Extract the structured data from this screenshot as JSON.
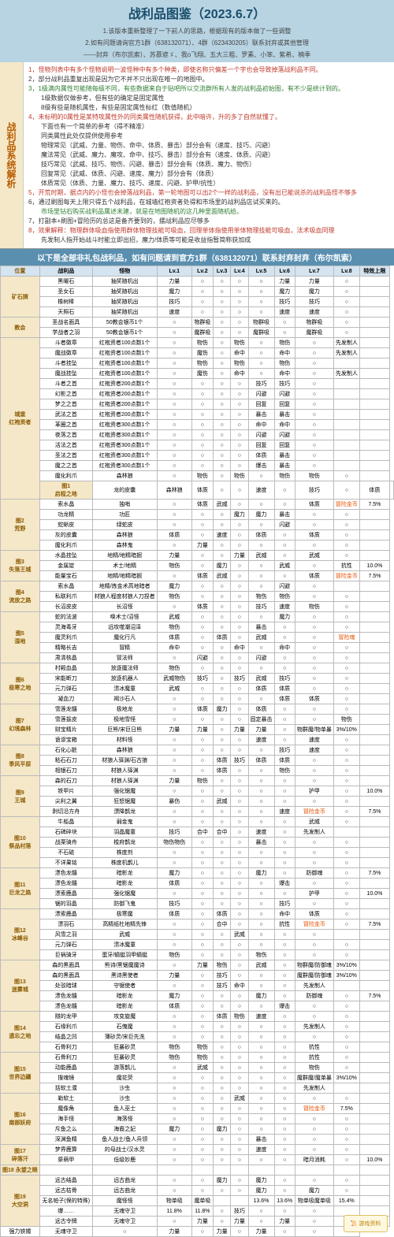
{
  "title": "战利品图鉴（2023.6.7）",
  "subtitle1": "1.该版本重新整理了一下前人的思路，根据现有的版本做了一些调整",
  "subtitle2": "2.如有问题请询官方1群（638132071）、4群（623430205）联系封弃或其他管理",
  "credits": "——封弃（布尔凯索）、苏慕遮ゞ、我o飞翔、五大三粗、罗素、小笨、紫希、楠季",
  "rules_label": "战利品系统解析",
  "rules": [
    {
      "t": "1，怪物列表中有多个怪物说明一波怪种中有多个种类，即使名称只偏差一个字也会导致掉落战利品不同。",
      "cls": "hl1"
    },
    {
      "t": "2，部分战利品重复出现是因为它不并不只出现在唯一的地图中。",
      "cls": ""
    },
    {
      "t": "3，1级满内属性可能随每级不同，有些数据来自于贴吧所以交流群所有人发的战利品初始图，有不少是统计到的。",
      "cls": "hl2"
    },
    {
      "t": "　　1级数据仅做参考，但有些的确定是固定属性",
      "cls": ""
    },
    {
      "t": "　　8级有些是随机属性，有些是固定属性标红（数值随机）",
      "cls": ""
    },
    {
      "t": "4，未标明的0属性是某特攻属性外的同类属性随机获得，此中暗许，升的多了自然就懂了。",
      "cls": "hl1"
    },
    {
      "t": "　　下面也有一个简单的参考（得不精准）",
      "cls": ""
    },
    {
      "t": "　　同类属性此处仅提供使用参考",
      "cls": ""
    },
    {
      "t": "　　物理常见（武威、力量、物伤、命中、体质、暴击）部分会有（速度、技巧、闪避）",
      "cls": ""
    },
    {
      "t": "　　魔法常见（武威、魔力、魔攻、命中、技巧、暴击）部分会有（速度、体质、闪避）",
      "cls": ""
    },
    {
      "t": "　　技巧常见（武威、技巧、物伤、闪避、暴击）部分会有（体质、魔力、物伤）",
      "cls": ""
    },
    {
      "t": "　　回复常见（武威、体质、闪避、速度、魔力）部分会有（体质）",
      "cls": ""
    },
    {
      "t": "　　体质常见（体质、力量、魔力、技巧、速度、闪避、护甲/抗性）",
      "cls": ""
    },
    {
      "t": "5，开荒时期，据点内的小怪也会掉落战利品，第一轮地图可以出2个一样的战利品，没有出已能说杀的战利品怪不够多",
      "cls": "hl1"
    },
    {
      "t": "6，通过刷图每天上限只得五个战利品，在城墙红袍资者处得和市场里的战利品店试买来的。",
      "cls": ""
    },
    {
      "t": "　　市场里钻石购买战利品属述未建，就是在地图随机的这几种里面随机给。",
      "cls": "hl2"
    },
    {
      "t": "7，打副本+刷图+冒险历的总这是备齐要到的，摆战利品应尽够多",
      "cls": ""
    },
    {
      "t": "8，效果解释：物理群体吸血指使用群体物理技能可吸血，回理单体指使用单体物理技能可吸血，法术吸血同理",
      "cls": "hl1"
    },
    {
      "t": "　　先发制人指开始战斗时能立即出招，魔力/体质等可能是收益指暂简称获加成",
      "cls": ""
    }
  ],
  "table_header": "以下是全部非礼包战利品，如有问题请到官方1群（638132071）联系封弃封弃（布尔凯索）",
  "columns": [
    "位置",
    "战利品",
    "怪物",
    "Lv.1",
    "Lv.2",
    "Lv.3",
    "Lv.4",
    "Lv.5",
    "Lv.6",
    "Lv.7",
    "Lv.8",
    "特效上限"
  ],
  "rows": [
    {
      "zone": "矿石牌",
      "zspan": 4,
      "cells": [
        "黑曜石",
        "抽奖随机出",
        "力量",
        "○",
        "○",
        "○",
        "○",
        "力量",
        "力量",
        "○"
      ]
    },
    {
      "cells": [
        "圣女石",
        "抽奖随机出",
        "魔力",
        "○",
        "○",
        "○",
        "○",
        "魔力",
        "魔力",
        "○"
      ]
    },
    {
      "cells": [
        "橡树棒",
        "抽奖随机出",
        "技巧",
        "○",
        "○",
        "○",
        "○",
        "技巧",
        "技巧",
        "○"
      ]
    },
    {
      "cells": [
        "天照石",
        "抽奖随机出",
        "速度",
        "○",
        "○",
        "○",
        "○",
        "速度",
        "速度",
        "○"
      ]
    },
    {
      "zone": "教会",
      "zspan": 2,
      "cells": [
        "圣战名面具",
        "50教会银币1个",
        "○",
        "物群吸",
        "○",
        "○",
        "物群吸",
        "○",
        "物群吸",
        "○"
      ]
    },
    {
      "cells": [
        "学战者之羽",
        "50教会银币1个",
        "○",
        "魔群吸",
        "○",
        "○",
        "魔群吸",
        "○",
        "魔群吸",
        "○"
      ]
    },
    {
      "zone": "城堡\n红袍资者",
      "zspan": 15,
      "cells": [
        "斗者徽章",
        "红袍资者100点数1个",
        "○",
        "物伤",
        "○",
        "物伤",
        "○",
        "物伤",
        "○",
        "先发制人"
      ]
    },
    {
      "cells": [
        "魔战徽章",
        "红袍资者100点数1个",
        "○",
        "魔伤",
        "○",
        "命中",
        "○",
        "命中",
        "○",
        "先发制人"
      ]
    },
    {
      "cells": [
        "斗者挂坠",
        "红袍资者100点数1个",
        "○",
        "物伤",
        "○",
        "物伤",
        "○",
        "物伤",
        "○"
      ]
    },
    {
      "cells": [
        "魔战挂坠",
        "红袍资者100点数1个",
        "○",
        "魔伤",
        "○",
        "命中",
        "○",
        "命中",
        "○",
        "先发制人"
      ]
    },
    {
      "cells": [
        "斗者之首",
        "红袍资者200点数1个",
        "○",
        "○",
        "○",
        "○",
        "技巧",
        "技巧",
        "○"
      ]
    },
    {
      "cells": [
        "幻影之首",
        "红袍资者200点数1个",
        "○",
        "○",
        "○",
        "○",
        "闪避",
        "闪避",
        "○"
      ]
    },
    {
      "cells": [
        "梦之之首",
        "红袍资者200点数1个",
        "○",
        "○",
        "○",
        "○",
        "回复",
        "回复",
        "○"
      ]
    },
    {
      "cells": [
        "武法之首",
        "红袍资者200点数1个",
        "○",
        "○",
        "○",
        "○",
        "暴击",
        "暴击",
        "○"
      ]
    },
    {
      "cells": [
        "革圈之首",
        "红袍资者300点数1个",
        "○",
        "○",
        "○",
        "○",
        "命中",
        "命中",
        "○"
      ]
    },
    {
      "cells": [
        "夜落之首",
        "红袍资者300点数1个",
        "○",
        "○",
        "○",
        "○",
        "闪避",
        "闪避",
        "○"
      ]
    },
    {
      "cells": [
        "活法之首",
        "红袍资者300点数1个",
        "○",
        "○",
        "○",
        "○",
        "回复",
        "回复",
        "○"
      ]
    },
    {
      "cells": [
        "圣法之首",
        "红袍资者300点数1个",
        "○",
        "○",
        "○",
        "○",
        "体质",
        "暴击",
        "○"
      ]
    },
    {
      "cells": [
        "魔之之首",
        "红袍资者300点数1个",
        "○",
        "○",
        "○",
        "○",
        "爆击",
        "暴击",
        "○"
      ]
    },
    {
      "cells": [
        "魔化利爪",
        "森林狼",
        "○",
        "物伤",
        "○",
        "物伤",
        "○",
        "物伤",
        "物伤",
        "○"
      ]
    },
    {
      "zone": "图1\n启程之地",
      "zspan": 1,
      "cells": [
        "龙的皮囊",
        "森林狼",
        "体质",
        "○",
        "○",
        "速度",
        "○",
        "技巧",
        "○",
        "体质"
      ]
    },
    {
      "zone": "图2\n荒野",
      "zspan": 5,
      "cells": [
        "索水晶",
        "独哨",
        "○",
        "体质",
        "武威",
        "○",
        "○",
        "○",
        "体质",
        "<span class='c-orange'>冒险金币</span>",
        "7.5%"
      ]
    },
    {
      "cells": [
        "功龙精",
        "功匠",
        "○",
        "○",
        "○",
        "魔力",
        "魔力",
        "暴击",
        "○",
        "○"
      ]
    },
    {
      "cells": [
        "蛇蜥皮",
        "绿蛇皮",
        "○",
        "○",
        "○",
        "○",
        "○",
        "闪避",
        "○",
        "○"
      ]
    },
    {
      "cells": [
        "灰的皮囊",
        "森林狼",
        "体质",
        "○",
        "速度",
        "○",
        "体质",
        "○",
        "体质",
        "○"
      ]
    },
    {
      "cells": [
        "魔化利爪",
        "森林鬼",
        "○",
        "力量",
        "○",
        "○",
        "○",
        "○",
        "○",
        "○"
      ]
    },
    {
      "zone": "图3\n失落王城",
      "zspan": 3,
      "cells": [
        "水晶挂坠",
        "地精/地精暗掘",
        "力量",
        "○",
        "○",
        "力量",
        "武威",
        "○",
        "武威",
        "○"
      ]
    },
    {
      "cells": [
        "金属锭",
        "术士/地精",
        "物伤",
        "○",
        "魔力",
        "○",
        "○",
        "武威",
        "○",
        "抗性",
        "10.0%"
      ]
    },
    {
      "cells": [
        "能量宝石",
        "地精/地精暗掘",
        "○",
        "体质",
        "武威",
        "○",
        "○",
        "○",
        "体质",
        "<span class='c-orange'>冒险金币</span>",
        "7.5%"
      ]
    },
    {
      "zone": "图4\n流放之路",
      "zspan": 3,
      "cells": [
        "索水晶",
        "地精/炼金术高地暗者",
        "魔力",
        "○",
        "○",
        "○",
        "○",
        "闪避",
        "○"
      ]
    },
    {
      "cells": [
        "私联利爪",
        "材狼人程度材狼人刀捏者",
        "物伤",
        "○",
        "○",
        "○",
        "物伤",
        "物伤",
        "○",
        "○"
      ]
    },
    {
      "cells": [
        "长沼皮皮",
        "长沼怪",
        "○",
        "体质",
        "○",
        "○",
        "技巧",
        "速度",
        "物伤",
        "○"
      ]
    },
    {
      "zone": "图5\n湿地",
      "zspan": 5,
      "cells": [
        "蛇的法波",
        "唤术士/沼怪",
        "武威",
        "○",
        "○",
        "○",
        "○",
        "魔力",
        "○",
        "○"
      ]
    },
    {
      "cells": [
        "灵海毒牙",
        "远攻噬潮沼泽",
        "物伤",
        "○",
        "○",
        "○",
        "暴击",
        "○",
        "○",
        "○"
      ]
    },
    {
      "cells": [
        "魔灵利爪",
        "魔化行凡",
        "体质",
        "○",
        "体质",
        "○",
        "武威",
        "○",
        "○",
        "<span class='c-orange'>冒险魂</span>"
      ]
    },
    {
      "cells": [
        "精略长吉",
        "冒精",
        "命中",
        "○",
        "○",
        "命中",
        "○",
        "命中",
        "○",
        "○"
      ]
    },
    {
      "cells": [
        "肃清核晶",
        "冒法师",
        "○",
        "闪避",
        "○",
        "○",
        "闪避",
        "○",
        "○",
        "○"
      ]
    },
    {
      "zone": "图6\n极寒之地",
      "zspan": 4,
      "cells": [
        "村殿血晶",
        "放逐魔法师",
        "物伤",
        "○",
        "○",
        "○",
        "○",
        "○",
        "○",
        "○"
      ]
    },
    {
      "cells": [
        "宋能断刀",
        "放逐机器人",
        "武威物伤",
        "技巧",
        "○",
        "技巧",
        "武威",
        "技巧",
        "○",
        "○"
      ]
    },
    {
      "cells": [
        "元力弹石",
        "溃冰魔童",
        "武威",
        "○",
        "○",
        "○",
        "体质",
        "体质",
        "○",
        "○"
      ]
    },
    {
      "cells": [
        "凝血刀",
        "褐沙石人",
        "○",
        "○",
        "○",
        "○",
        "○",
        "体质",
        "体质",
        "○"
      ]
    },
    {
      "zone": "图7\n幻境森林",
      "zspan": 4,
      "cells": [
        "雪莲龙髓",
        "极地龙",
        "○",
        "体质",
        "魔力",
        "○",
        "体质",
        "○",
        "○",
        "○"
      ]
    },
    {
      "cells": [
        "雪莲拔皮",
        "极地雪怪",
        "○",
        "○",
        "○",
        "○",
        "固定暴击",
        "○",
        "○",
        "物伤"
      ]
    },
    {
      "cells": [
        "财宝精片",
        "巨熊/宋巨日熊",
        "力量",
        "力量",
        "○",
        "力量",
        "力量",
        "○",
        "物群魔/物单暴",
        "3%/10%"
      ]
    },
    {
      "cells": [
        "诡谬宝箱",
        "材料怪",
        "○",
        "○",
        "○",
        "○",
        "速度",
        "○",
        "速度",
        "○"
      ]
    },
    {
      "zone": "图8\n季风平原",
      "zspan": 3,
      "cells": [
        "石化心脏",
        "森林狼",
        "○",
        "○",
        "○",
        "○",
        "○",
        "技巧",
        "速度",
        "○"
      ]
    },
    {
      "cells": [
        "粘石石刀",
        "材狼人驿渊/石古狼",
        "○",
        "○",
        "体质",
        "技巧",
        "体质",
        "体质",
        "○",
        "○"
      ]
    },
    {
      "cells": [
        "相银石刀",
        "材狼人驿渊",
        "○",
        "○",
        "体质",
        "○",
        "○",
        "物伤",
        "○",
        "○"
      ]
    },
    {
      "zone": "图9\n王城",
      "zspan": 4,
      "cells": [
        "森的石刀",
        "材狼人驿渊",
        "力量",
        "物伤",
        "○",
        "○",
        "○",
        "○",
        "○",
        "○"
      ]
    },
    {
      "cells": [
        "铁甲片",
        "强化锯魔",
        "○",
        "○",
        "○",
        "○",
        "○",
        "○",
        "护甲",
        "○",
        "10.0%"
      ]
    },
    {
      "cells": [
        "尖利之翼",
        "狂怒锯魔",
        "暴伤",
        "○",
        "武威",
        "○",
        "○",
        "○",
        "○",
        "○"
      ]
    },
    {
      "cells": [
        "剥切沿方舟",
        "漂降鹊龙",
        "○",
        "○",
        "○",
        "○",
        "○",
        "速度",
        "<span class='c-orange'>冒险金币</span>",
        "○",
        "7.5%"
      ]
    },
    {
      "zone": "图10\n祭品村落",
      "zspan": 5,
      "cells": [
        "牛船晶",
        "弱金鬼",
        "○",
        "○",
        "○",
        "○",
        "○",
        "○",
        "武威",
        "○"
      ]
    },
    {
      "cells": [
        "石碑碎块",
        "羽晶魔童",
        "技巧",
        "合中",
        "合中",
        "○",
        "速度",
        "○",
        "先发制人"
      ]
    },
    {
      "cells": [
        "战栗骑舟",
        "梭府鹊龙",
        "物伤物伤",
        "○",
        "○",
        "○",
        "暴击",
        "○",
        "○",
        "○"
      ]
    },
    {
      "cells": [
        "不石硫",
        "株度剂",
        "○",
        "○",
        "○",
        "○",
        "○",
        "○",
        "○",
        "○"
      ]
    },
    {
      "cells": [
        "不详果铭",
        "株度机鹊儿",
        "○",
        "○",
        "○",
        "○",
        "○",
        "○",
        "○",
        "○"
      ]
    },
    {
      "zone": "图11\n巨龙之路",
      "zspan": 4,
      "cells": [
        "漂色龙髓",
        "暗影龙",
        "魔力",
        "○",
        "○",
        "○",
        "魔力",
        "○",
        "防御魂",
        "○",
        "7.5%"
      ]
    },
    {
      "cells": [
        "漂色龙髓",
        "暗影龙",
        "体质",
        "○",
        "○",
        "○",
        "○",
        "爆击",
        "○",
        "○"
      ]
    },
    {
      "cells": [
        "漂索鹿晶",
        "强化锯魔",
        "○",
        "○",
        "○",
        "○",
        "○",
        "○",
        "护甲",
        "○",
        "10.0%"
      ]
    },
    {
      "cells": [
        "锯的羽晶",
        "防御飞鬼",
        "技巧",
        "○",
        "○",
        "○",
        "○",
        "技巧",
        "○",
        "○"
      ]
    },
    {
      "zone": "图12\n冰峰谷",
      "zspan": 5,
      "cells": [
        "漂索鹿晶",
        "极寒魔",
        "体质",
        "○",
        "体质",
        "○",
        "○",
        "命中",
        "体质",
        "○"
      ]
    },
    {
      "cells": [
        "漂羽石",
        "高精纸杜地精先锋",
        "○",
        "○",
        "合中",
        "○",
        "○",
        "抗性",
        "<span class='c-orange'>冒险金币</span>",
        "○",
        "7.5%"
      ]
    },
    {
      "cells": [
        "风雪之羽",
        "武威",
        "○",
        "○",
        "○",
        "武威",
        "○",
        "○",
        "○"
      ]
    },
    {
      "cells": [
        "元力弹石",
        "溃冰魔童",
        "○",
        "○",
        "○",
        "○",
        "○",
        "○",
        "○",
        "○"
      ]
    },
    {
      "cells": [
        "巨祸骑牙",
        "蛋牙/蜻蜓羽甲蜻蜓",
        "物伤",
        "○",
        "○",
        "○",
        "物伤",
        "○",
        "○",
        "○"
      ]
    },
    {
      "zone": "图13\n迷雾城",
      "zspan": 5,
      "cells": [
        "森的黑面具",
        "熊诗/黑锯魔魔诗",
        "○",
        "力量",
        "物伤",
        "○",
        "武威",
        "○",
        "物群魔/防御魂",
        "3%/10%"
      ]
    },
    {
      "cells": [
        "森的黑面具",
        "黑诗黑使者",
        "力量",
        "○",
        "技巧",
        "○",
        "○",
        "○",
        "魔群魔/防御魂",
        "3%/10%"
      ]
    },
    {
      "cells": [
        "处驳暗球",
        "守锯使者",
        "○",
        "○",
        "技巧",
        "命中",
        "○",
        "○",
        "先发制人"
      ]
    },
    {
      "cells": [
        "漂色龙髓",
        "暗影龙",
        "魔力",
        "○",
        "○",
        "○",
        "魔力",
        "○",
        "防御魂",
        "○",
        "7.5%"
      ]
    },
    {
      "cells": [
        "漂色龙髓",
        "暗影龙",
        "体质",
        "○",
        "○",
        "○",
        "○",
        "爆击",
        "○",
        "○"
      ]
    },
    {
      "zone": "图14\n遗忘之地",
      "zspan": 4,
      "cells": [
        "隧的龙甲",
        "攻变旋魔",
        "○",
        "○",
        "体质",
        "物伤",
        "速度",
        "○",
        "○",
        "○"
      ]
    },
    {
      "cells": [
        "石缘利爪",
        "石傀魔",
        "○",
        "○",
        "○",
        "○",
        "○",
        "○",
        "先发制人",
        "○"
      ]
    },
    {
      "cells": [
        "结晶之凹",
        "薄砂灵/宋巨先洗",
        "○",
        "○",
        "○",
        "○",
        "○",
        "○",
        "○",
        "○"
      ]
    },
    {
      "cells": [
        "石骨利刀",
        "狂暴砂灵",
        "物伤",
        "物伤",
        "○",
        "○",
        "○",
        "○",
        "抗性",
        "○"
      ]
    },
    {
      "zone": "图15\n世界边疆",
      "zspan": 4,
      "cells": [
        "石骨利刀",
        "狂暴砂灵",
        "物伤",
        "物伤",
        "○",
        "○",
        "○",
        "○",
        "抗性",
        "○"
      ]
    },
    {
      "cells": [
        "动能鹿晶",
        "游落鹊儿",
        "○",
        "武威",
        "○",
        "○",
        "○",
        "○",
        "物伤",
        "○"
      ]
    },
    {
      "cells": [
        "搜魂镜",
        "魔花荧",
        "○",
        "○",
        "○",
        "○",
        "○",
        "○",
        "魔群魔/魔单暴",
        "3%/10%"
      ]
    },
    {
      "cells": [
        "括软土濮",
        "沙虫",
        "○",
        "○",
        "○",
        "○",
        "○",
        "○",
        "先发制人"
      ]
    },
    {
      "zone": "图16\n南部妖府",
      "zspan": 5,
      "cells": [
        "勒软土",
        "沙虫",
        "○",
        "○",
        "○",
        "武威",
        "○",
        "○",
        "○",
        "○"
      ]
    },
    {
      "cells": [
        "魔像角",
        "鱼人巫士",
        "○",
        "○",
        "○",
        "○",
        "○",
        "○",
        "<span class='c-orange'>冒险金币</span>",
        "7.5%"
      ]
    },
    {
      "cells": [
        "海手怪",
        "海落怪",
        "○",
        "○",
        "○",
        "○",
        "○",
        "○",
        "○",
        "○"
      ]
    },
    {
      "cells": [
        "斥鱼之么",
        "海裔之妃",
        "魔力",
        "○",
        "魔力",
        "○",
        "○",
        "○",
        "○",
        "○"
      ]
    },
    {
      "cells": [
        "深渊鱼精",
        "鱼人战士/鱼人兵领",
        "○",
        "○",
        "○",
        "○",
        "暴击",
        "○",
        "○",
        "○"
      ]
    },
    {
      "zone": "图17\n碎落汗",
      "zspan": 2,
      "cells": [
        "梦界鹿算",
        "的母战士/汉水灵",
        "○",
        "○",
        "○",
        "○",
        "速度",
        "○",
        "○",
        "○"
      ]
    },
    {
      "cells": [
        "祭萌甲",
        "低级妙鹿",
        "○",
        "○",
        "○",
        "○",
        "○",
        "○",
        "暗月消耗",
        "○",
        "10.0%"
      ]
    },
    {
      "zone": "图18 永望之眼",
      "zspan": 1,
      "cells": [
        "",
        "",
        "",
        "",
        "",
        "",
        "",
        "",
        "",
        ""
      ]
    },
    {
      "zone": "图19\n大空洞",
      "zspan": 5,
      "cells": [
        "远古结晶",
        "远古曲龙",
        "○",
        "○",
        "魔力",
        "○",
        "魔力",
        "○",
        "○",
        "○"
      ]
    },
    {
      "cells": [
        "远古枯骨",
        "远古曲龙",
        "○",
        "○",
        "○",
        "○",
        "魔力",
        "○",
        "魔力",
        "○"
      ]
    },
    {
      "cells": [
        "无名帕子(保的特殊)",
        "魔怪怪",
        "物单吸",
        "魔单吸",
        "",
        "",
        "13.6%",
        "13.6%",
        "物单吸魔单吸",
        "15.4%"
      ]
    },
    {
      "cells": [
        "爆……",
        "无魂守卫",
        "11.8%",
        "11.8%",
        "○",
        "技巧",
        "○",
        "○",
        "○"
      ]
    },
    {
      "cells": [
        "远古令牌",
        "无魂守卫",
        "○",
        "力量",
        "○",
        "力量",
        "○",
        "力量",
        "○",
        "○"
      ]
    },
    {
      "cells": [
        "强力铁镯",
        "无魂守卫",
        "○",
        "力量",
        "○",
        "力量",
        "○",
        "力量",
        "○",
        "○"
      ]
    }
  ],
  "stamp": "📜 游戏资料"
}
